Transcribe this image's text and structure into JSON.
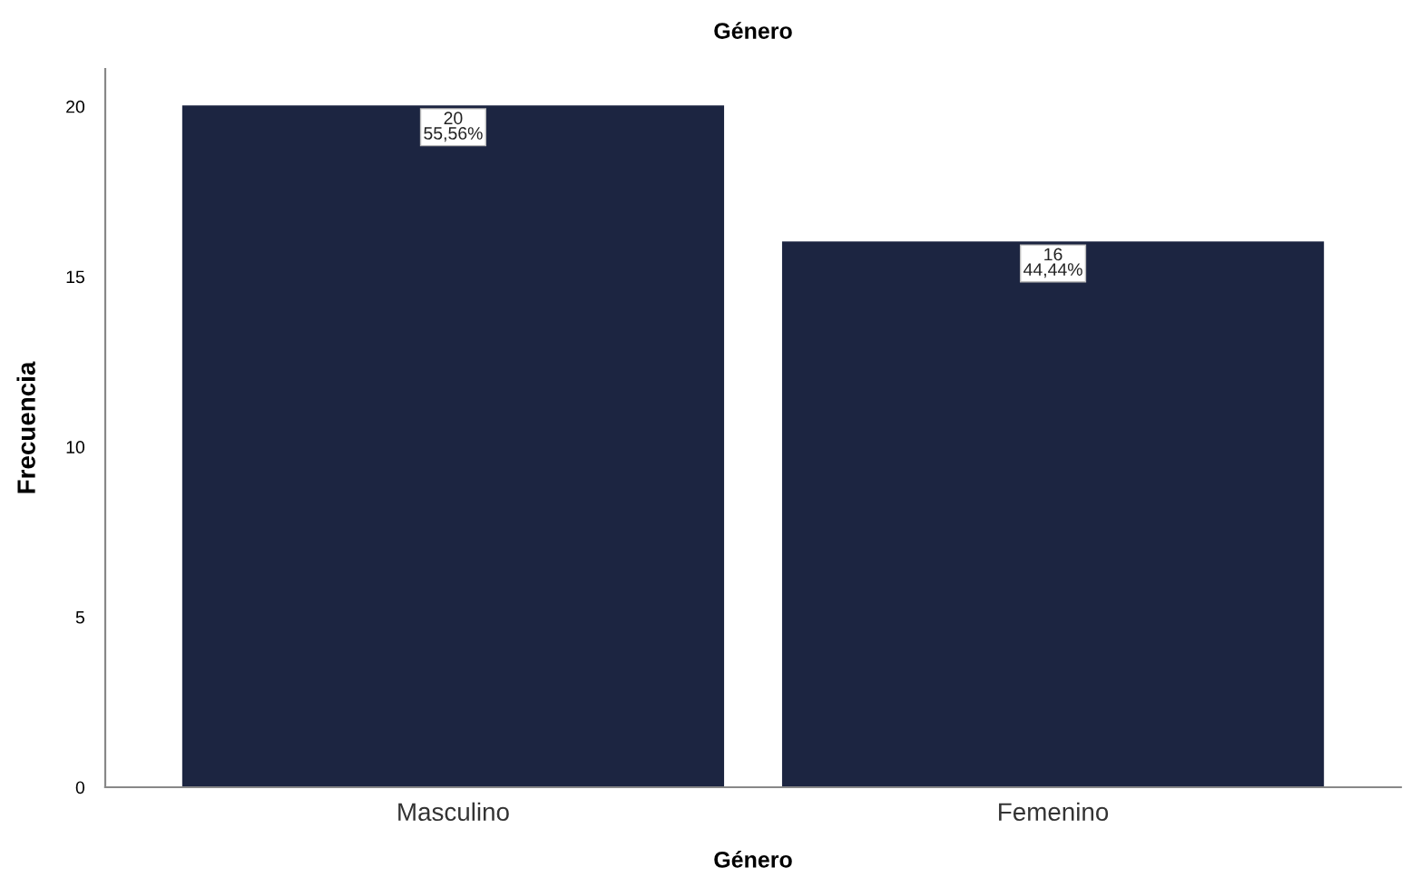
{
  "chart_data": {
    "type": "bar",
    "title": "Género",
    "xlabel": "Género",
    "ylabel": "Frecuencia",
    "categories": [
      "Masculino",
      "Femenino"
    ],
    "values": [
      20,
      16
    ],
    "value_labels": [
      "20\n55,56%",
      "16\n44,44%"
    ],
    "color": "#1c2541",
    "ylim": [
      0,
      21.1
    ],
    "yticks": [
      0,
      5,
      10,
      15,
      20
    ],
    "grid": false,
    "legend": false
  }
}
